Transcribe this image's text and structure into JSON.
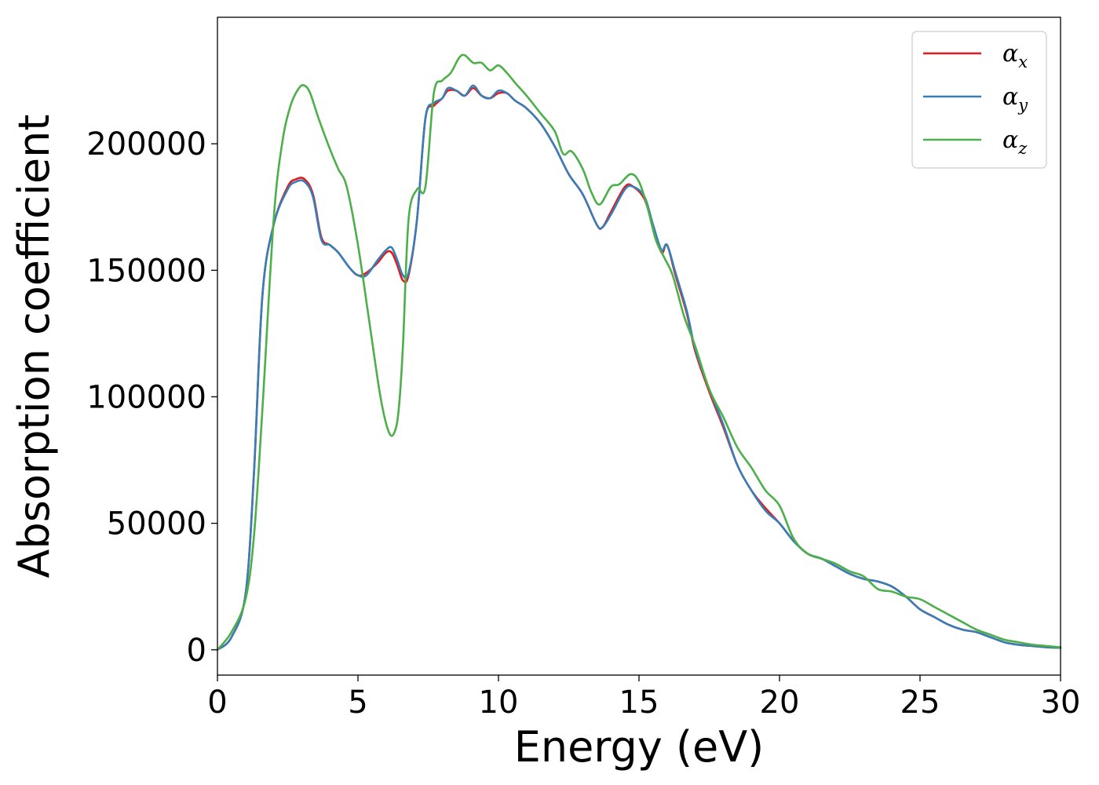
{
  "chart_data": {
    "type": "line",
    "title": "",
    "xlabel": "Energy (eV)",
    "ylabel": "Absorption coefficient",
    "xlim": [
      0,
      30
    ],
    "ylim": [
      -10000,
      250000
    ],
    "xticks": [
      0,
      5,
      10,
      15,
      20,
      25,
      30
    ],
    "yticks": [
      0,
      50000,
      100000,
      150000,
      200000
    ],
    "grid": false,
    "legend_position": "top-right",
    "series": [
      {
        "name": "α_x",
        "symbol": "α",
        "subscript": "x",
        "color": "#e41a1c",
        "x": [
          0,
          0.5,
          1.0,
          1.3,
          1.6,
          2.0,
          2.5,
          2.8,
          3.1,
          3.4,
          3.7,
          4.0,
          4.3,
          4.7,
          5.0,
          5.3,
          5.7,
          6.0,
          6.2,
          6.4,
          6.6,
          6.8,
          7.1,
          7.4,
          7.7,
          8.0,
          8.2,
          8.5,
          8.8,
          9.1,
          9.4,
          9.7,
          10.0,
          10.3,
          10.6,
          11.0,
          11.5,
          12.0,
          12.5,
          13.0,
          13.5,
          13.7,
          14.0,
          14.5,
          14.8,
          15.2,
          15.5,
          15.8,
          16.0,
          16.3,
          16.7,
          17.0,
          17.5,
          18.0,
          18.5,
          19.0,
          19.5,
          20.0,
          20.5,
          21.0,
          21.5,
          22.0,
          22.5,
          23.0,
          23.5,
          24.0,
          24.5,
          25.0,
          25.5,
          26.0,
          26.5,
          27.0,
          27.5,
          28.0,
          28.5,
          29.0,
          29.5,
          30.0
        ],
        "values": [
          0,
          5000,
          22000,
          70000,
          140000,
          168000,
          183000,
          186000,
          186000,
          180000,
          163000,
          160000,
          157000,
          151000,
          148000,
          149000,
          153000,
          157000,
          157000,
          152000,
          146000,
          148000,
          170000,
          210000,
          215000,
          218000,
          221000,
          221000,
          219000,
          222000,
          219000,
          218000,
          220000,
          220000,
          217000,
          214000,
          208000,
          199000,
          188000,
          180000,
          168000,
          167000,
          173000,
          183000,
          183000,
          178000,
          167000,
          157000,
          160000,
          148000,
          133000,
          118000,
          102000,
          88000,
          73000,
          63000,
          56000,
          50000,
          43000,
          38000,
          36000,
          33000,
          30000,
          28000,
          27000,
          25000,
          21000,
          16000,
          13000,
          10000,
          8000,
          7000,
          5000,
          3000,
          2000,
          1500,
          1000,
          800
        ]
      },
      {
        "name": "α_y",
        "symbol": "α",
        "subscript": "y",
        "color": "#377eb8",
        "x": [
          0,
          0.5,
          1.0,
          1.3,
          1.6,
          2.0,
          2.5,
          2.8,
          3.1,
          3.4,
          3.7,
          4.0,
          4.3,
          4.7,
          5.0,
          5.3,
          5.7,
          6.0,
          6.2,
          6.4,
          6.6,
          6.8,
          7.1,
          7.4,
          7.7,
          8.0,
          8.2,
          8.5,
          8.8,
          9.1,
          9.4,
          9.7,
          10.0,
          10.3,
          10.6,
          11.0,
          11.5,
          12.0,
          12.5,
          13.0,
          13.5,
          13.7,
          14.0,
          14.5,
          14.8,
          15.2,
          15.5,
          15.8,
          16.0,
          16.3,
          16.7,
          17.0,
          17.5,
          18.0,
          18.5,
          19.0,
          19.5,
          20.0,
          20.5,
          21.0,
          21.5,
          22.0,
          22.5,
          23.0,
          23.5,
          24.0,
          24.5,
          25.0,
          25.5,
          26.0,
          26.5,
          27.0,
          27.5,
          28.0,
          28.5,
          29.0,
          29.5,
          30.0
        ],
        "values": [
          0,
          5000,
          22000,
          70000,
          140000,
          168000,
          182000,
          185000,
          185000,
          179000,
          162000,
          160000,
          157000,
          151000,
          148000,
          148000,
          154000,
          158000,
          159000,
          154000,
          148000,
          149000,
          170000,
          210000,
          216000,
          218000,
          222000,
          221000,
          219000,
          223000,
          219000,
          218000,
          221000,
          220000,
          217000,
          214000,
          208000,
          199000,
          188000,
          180000,
          168000,
          167000,
          172000,
          182000,
          183000,
          179000,
          168000,
          158000,
          160000,
          149000,
          134000,
          119000,
          103000,
          89000,
          73000,
          63000,
          55000,
          50000,
          43000,
          38000,
          36000,
          33000,
          30000,
          28000,
          27000,
          25000,
          21000,
          16000,
          13000,
          10000,
          8000,
          7000,
          5000,
          3000,
          2000,
          1500,
          1000,
          800
        ]
      },
      {
        "name": "α_z",
        "symbol": "α",
        "subscript": "z",
        "color": "#4daf4a",
        "x": [
          0,
          0.5,
          1.0,
          1.3,
          1.6,
          2.0,
          2.3,
          2.6,
          2.9,
          3.1,
          3.3,
          3.6,
          4.0,
          4.3,
          4.6,
          5.0,
          5.4,
          5.8,
          6.1,
          6.3,
          6.45,
          6.6,
          6.8,
          7.1,
          7.4,
          7.7,
          8.0,
          8.3,
          8.6,
          8.8,
          9.1,
          9.4,
          9.7,
          10.0,
          10.3,
          10.6,
          11.0,
          11.5,
          12.0,
          12.3,
          12.6,
          13.0,
          13.3,
          13.6,
          14.0,
          14.3,
          14.7,
          15.0,
          15.3,
          15.6,
          15.9,
          16.2,
          16.6,
          17.0,
          17.5,
          18.0,
          18.5,
          19.0,
          19.5,
          20.0,
          20.5,
          21.0,
          21.5,
          22.0,
          22.5,
          23.0,
          23.5,
          24.0,
          24.5,
          25.0,
          25.5,
          26.0,
          26.5,
          27.0,
          27.5,
          28.0,
          28.5,
          29.0,
          29.5,
          30.0
        ],
        "values": [
          0,
          7000,
          20000,
          45000,
          95000,
          170000,
          200000,
          215000,
          222000,
          223000,
          220000,
          210000,
          198000,
          190000,
          183000,
          160000,
          130000,
          100000,
          86000,
          86000,
          95000,
          120000,
          170000,
          182000,
          183000,
          220000,
          225000,
          228000,
          234000,
          235000,
          232000,
          232000,
          229000,
          231000,
          228000,
          224000,
          219000,
          212000,
          205000,
          196000,
          197000,
          190000,
          181000,
          176000,
          183000,
          184000,
          188000,
          185000,
          175000,
          162000,
          155000,
          148000,
          132000,
          120000,
          103000,
          92000,
          80000,
          72000,
          63000,
          57000,
          44000,
          38000,
          36000,
          34000,
          31000,
          29000,
          24000,
          23000,
          21000,
          20000,
          17000,
          14000,
          11000,
          8000,
          6000,
          4000,
          3000,
          2000,
          1500,
          1000
        ]
      }
    ]
  }
}
